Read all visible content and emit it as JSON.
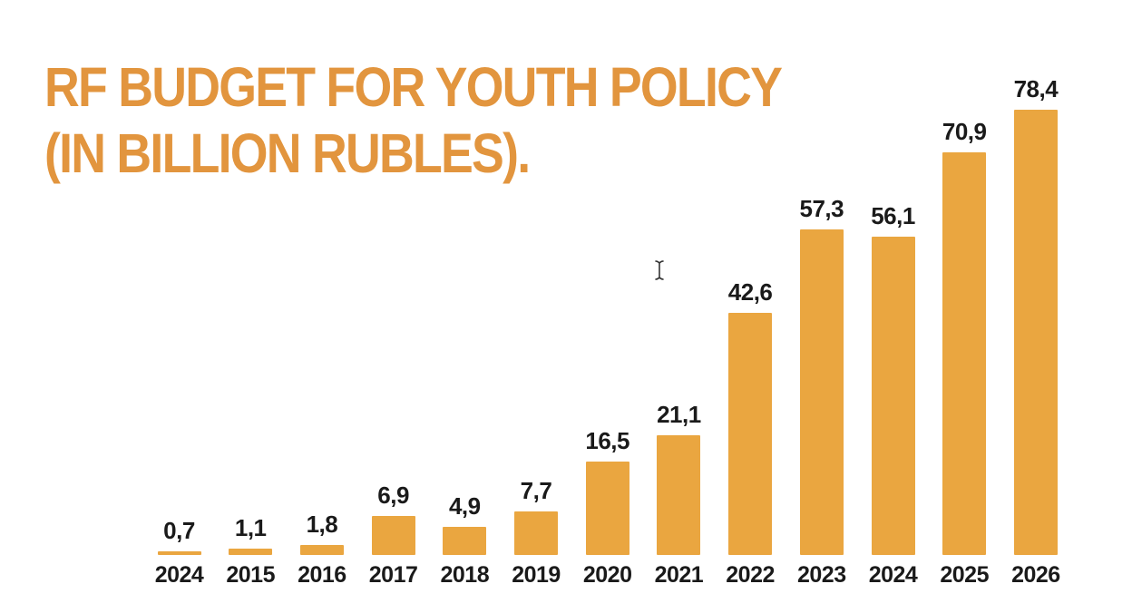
{
  "page": {
    "background_color": "#ffffff"
  },
  "title": {
    "line1": "RF BUDGET FOR YOUTH POLICY",
    "line2": "(IN BILLION RUBLES).",
    "color": "#E2953E"
  },
  "cursor": {
    "icon": "text-ibeam-cursor",
    "color": "#333333"
  },
  "chart_data": {
    "type": "bar",
    "title": "RF BUDGET FOR YOUTH POLICY (IN BILLION RUBLES).",
    "xlabel": "",
    "ylabel": "",
    "categories": [
      "2024",
      "2015",
      "2016",
      "2017",
      "2018",
      "2019",
      "2020",
      "2021",
      "2022",
      "2023",
      "2024",
      "2025",
      "2026"
    ],
    "values": [
      0.7,
      1.1,
      1.8,
      6.9,
      4.9,
      7.7,
      16.5,
      21.1,
      42.6,
      57.3,
      56.1,
      70.9,
      78.4
    ],
    "value_labels": [
      "0,7",
      "1,1",
      "1,8",
      "6,9",
      "4,9",
      "7,7",
      "16,5",
      "21,1",
      "42,6",
      "57,3",
      "56,1",
      "70,9",
      "78,4"
    ],
    "ylim": [
      0,
      80
    ],
    "grid": false,
    "legend": false,
    "bar_color": "#EAA640",
    "value_label_color": "#1a1a1a",
    "axis_label_color": "#1a1a1a",
    "decimal_separator": ","
  }
}
